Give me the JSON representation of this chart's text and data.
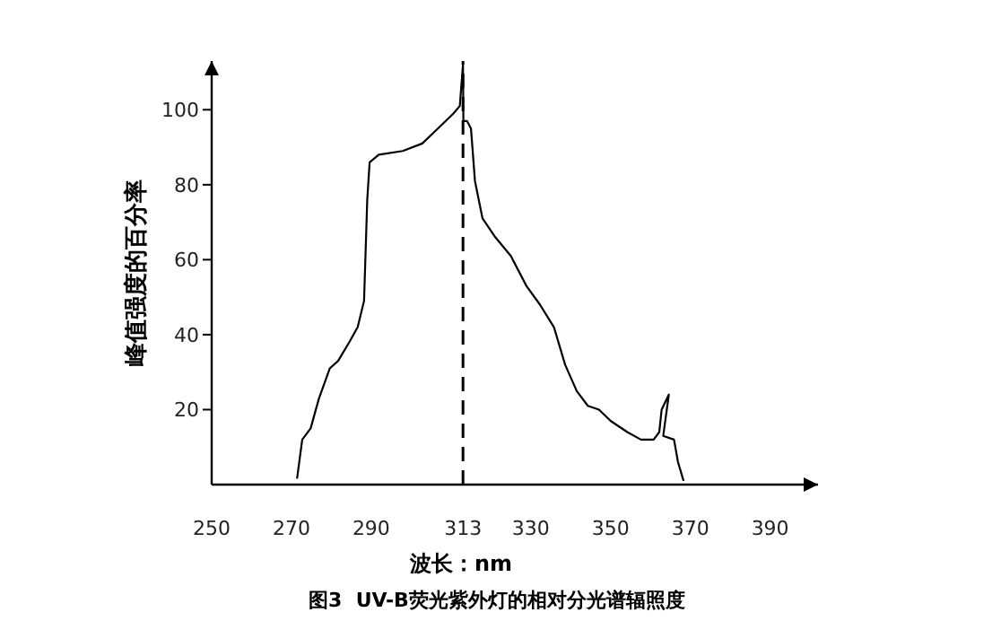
{
  "chart_data": {
    "type": "line",
    "title": "图3  UV-B荧光紫外灯的相对分光谱辐照度",
    "xlabel": "波长：nm",
    "ylabel": "峰值强度的百分率",
    "xlim": [
      250,
      402
    ],
    "ylim": [
      0,
      113
    ],
    "xticks": [
      250,
      270,
      290,
      313,
      330,
      350,
      370,
      390
    ],
    "yticks": [
      20,
      40,
      60,
      80,
      100
    ],
    "grid": false,
    "marker": "none",
    "line_style": "solid",
    "series": [
      {
        "color": "#000000",
        "x": [
          271.4,
          272.7,
          274.8,
          276.9,
          279.6,
          281.7,
          284.5,
          286.6,
          288.2,
          289.0,
          289.6,
          291.9,
          297.9,
          302.8,
          306.7,
          310.6,
          312.2,
          313,
          313.1,
          314.0,
          315.0,
          316.0,
          317.9,
          321.1,
          325.0,
          328.9,
          332.3,
          335.8,
          338.6,
          341.5,
          344.3,
          347.1,
          350,
          354.2,
          357.6,
          360.8,
          362.2,
          362.8,
          364.6,
          363.2,
          365.9,
          366.9,
          368.3
        ],
        "values": [
          1.6,
          12,
          15,
          23,
          31,
          33,
          38,
          42,
          49,
          76,
          86,
          88,
          89,
          91,
          95,
          99,
          101,
          112,
          97,
          97,
          95,
          81,
          71,
          66,
          61,
          53,
          48,
          42,
          32,
          25,
          21,
          20,
          17,
          14,
          12,
          12,
          14,
          20,
          24,
          13,
          12,
          6,
          1
        ]
      }
    ],
    "ref_lines": [
      {
        "axis": "x",
        "value": 313,
        "color": "#000000",
        "line_style": "dashed"
      }
    ]
  }
}
